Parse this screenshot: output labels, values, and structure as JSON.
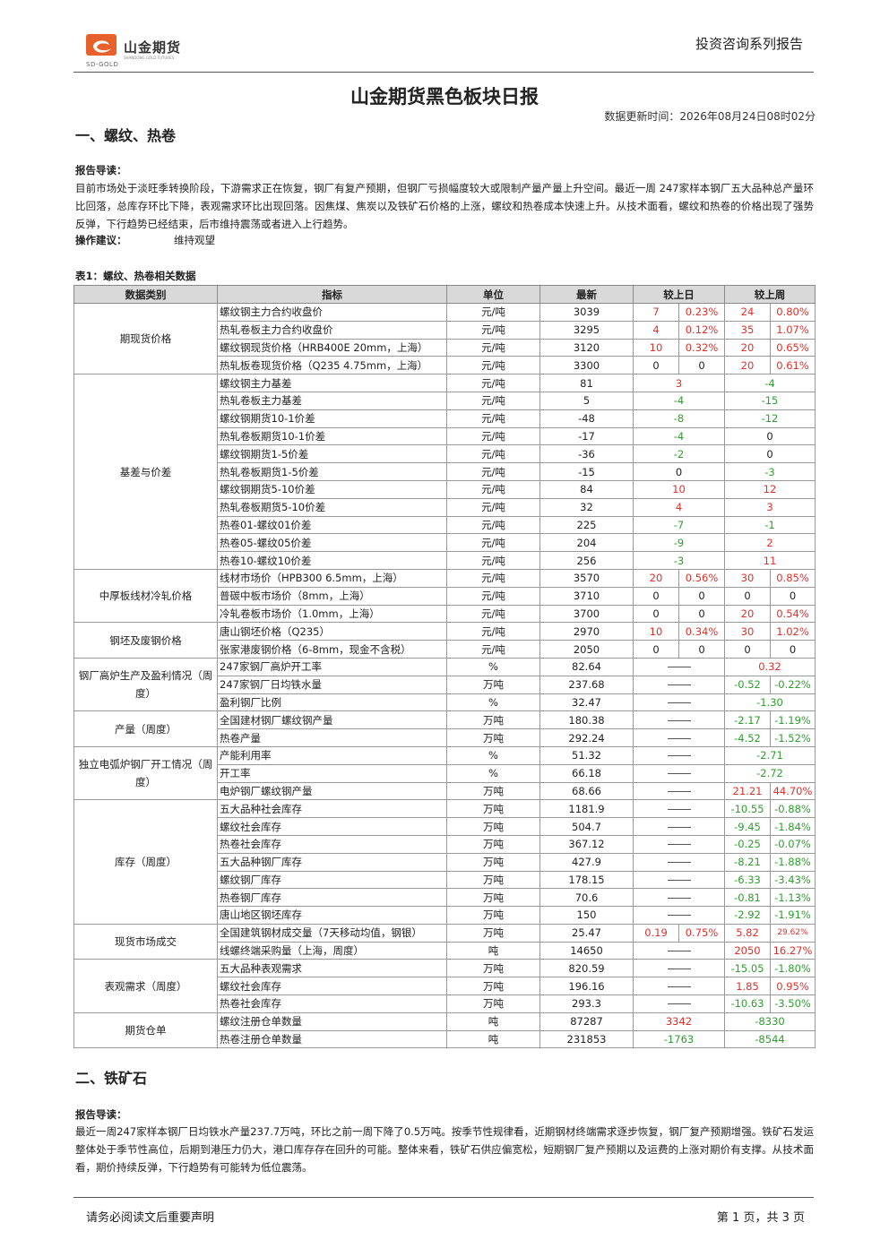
{
  "header": {
    "logo_cn": "山金期货",
    "logo_en": "SD-GOLD",
    "logo_sub": "SHANDONG GOLD FUTURES",
    "series": "投资咨询系列报告"
  },
  "title": "山金期货黑色板块日报",
  "update_time": "数据更新时间：2026年08月24日08时02分",
  "section1": {
    "heading": "一、螺纹、热卷",
    "guide_label": "报告导读：",
    "guide_text": "目前市场处于淡旺季转换阶段，下游需求正在恢复，钢厂有复产预期，但钢厂亏损幅度较大或限制产量产量上升空间。最近一周 247家样本钢厂五大品种总产量环比回落，总库存环比下降，表观需求环比出现回落。因焦煤、焦炭以及铁矿石价格的上涨，螺纹和热卷成本快速上升。从技术面看，螺纹和热卷的价格出现了强势反弹，下行趋势已经结束，后市维持震荡或者进入上行趋势。",
    "advice_label": "操作建议：",
    "advice_value": "维持观望",
    "table_caption": "表1：螺纹、热卷相关数据",
    "columns": [
      "数据类别",
      "指标",
      "单位",
      "最新",
      "较上日",
      "较上周"
    ]
  },
  "table_rows": [
    {
      "cat": "期现货价格",
      "span": 4,
      "ind": "螺纹钢主力合约收盘价",
      "unit": "元/吨",
      "latest": "3039",
      "d": [
        "7",
        "0.23%"
      ],
      "dc": "red",
      "w": [
        "24",
        "0.80%"
      ],
      "wc": "red"
    },
    {
      "ind": "热轧卷板主力合约收盘价",
      "unit": "元/吨",
      "latest": "3295",
      "d": [
        "4",
        "0.12%"
      ],
      "dc": "red",
      "w": [
        "35",
        "1.07%"
      ],
      "wc": "red"
    },
    {
      "ind": "螺纹钢现货价格（HRB400E 20mm，上海）",
      "unit": "元/吨",
      "latest": "3120",
      "d": [
        "10",
        "0.32%"
      ],
      "dc": "red",
      "w": [
        "20",
        "0.65%"
      ],
      "wc": "red"
    },
    {
      "ind": "热轧板卷现货价格（Q235 4.75mm，上海）",
      "unit": "元/吨",
      "latest": "3300",
      "d": [
        "0",
        "0"
      ],
      "dc": "",
      "w": [
        "20",
        "0.61%"
      ],
      "wc": "red"
    },
    {
      "cat": "基差与价差",
      "span": 11,
      "ind": "螺纹钢主力基差",
      "unit": "元/吨",
      "latest": "81",
      "d": [
        "3"
      ],
      "dc": "red",
      "w": [
        "-4"
      ],
      "wc": "grn"
    },
    {
      "ind": "热轧卷板主力基差",
      "unit": "元/吨",
      "latest": "5",
      "d": [
        "-4"
      ],
      "dc": "grn",
      "w": [
        "-15"
      ],
      "wc": "grn"
    },
    {
      "ind": "螺纹钢期货10-1价差",
      "unit": "元/吨",
      "latest": "-48",
      "d": [
        "-8"
      ],
      "dc": "grn",
      "w": [
        "-12"
      ],
      "wc": "grn"
    },
    {
      "ind": "热轧卷板期货10-1价差",
      "unit": "元/吨",
      "latest": "-17",
      "d": [
        "-4"
      ],
      "dc": "grn",
      "w": [
        "0"
      ],
      "wc": ""
    },
    {
      "ind": "螺纹钢期货1-5价差",
      "unit": "元/吨",
      "latest": "-36",
      "d": [
        "-2"
      ],
      "dc": "grn",
      "w": [
        "0"
      ],
      "wc": ""
    },
    {
      "ind": "热轧卷板期货1-5价差",
      "unit": "元/吨",
      "latest": "-15",
      "d": [
        "0"
      ],
      "dc": "",
      "w": [
        "-3"
      ],
      "wc": "grn"
    },
    {
      "ind": "螺纹钢期货5-10价差",
      "unit": "元/吨",
      "latest": "84",
      "d": [
        "10"
      ],
      "dc": "red",
      "w": [
        "12"
      ],
      "wc": "red"
    },
    {
      "ind": "热轧卷板期货5-10价差",
      "unit": "元/吨",
      "latest": "32",
      "d": [
        "4"
      ],
      "dc": "red",
      "w": [
        "3"
      ],
      "wc": "red"
    },
    {
      "ind": "热卷01-螺纹01价差",
      "unit": "元/吨",
      "latest": "225",
      "d": [
        "-7"
      ],
      "dc": "grn",
      "w": [
        "-1"
      ],
      "wc": "grn"
    },
    {
      "ind": "热卷05-螺纹05价差",
      "unit": "元/吨",
      "latest": "204",
      "d": [
        "-9"
      ],
      "dc": "grn",
      "w": [
        "2"
      ],
      "wc": "red"
    },
    {
      "ind": "热卷10-螺纹10价差",
      "unit": "元/吨",
      "latest": "256",
      "d": [
        "-3"
      ],
      "dc": "grn",
      "w": [
        "11"
      ],
      "wc": "red"
    },
    {
      "cat": "中厚板线材冷轧价格",
      "span": 3,
      "ind": "线材市场价（HPB300 6.5mm，上海）",
      "unit": "元/吨",
      "latest": "3570",
      "d": [
        "20",
        "0.56%"
      ],
      "dc": "red",
      "w": [
        "30",
        "0.85%"
      ],
      "wc": "red"
    },
    {
      "ind": "普碳中板市场价（8mm，上海）",
      "unit": "元/吨",
      "latest": "3710",
      "d": [
        "0",
        "0"
      ],
      "dc": "",
      "w": [
        "0",
        "0"
      ],
      "wc": ""
    },
    {
      "ind": "冷轧卷板市场价（1.0mm，上海）",
      "unit": "元/吨",
      "latest": "3700",
      "d": [
        "0",
        "0"
      ],
      "dc": "",
      "w": [
        "20",
        "0.54%"
      ],
      "wc": "red"
    },
    {
      "cat": "钢坯及废钢价格",
      "span": 2,
      "ind": "唐山钢坯价格（Q235）",
      "unit": "元/吨",
      "latest": "2970",
      "d": [
        "10",
        "0.34%"
      ],
      "dc": "red",
      "w": [
        "30",
        "1.02%"
      ],
      "wc": "red"
    },
    {
      "ind": "张家港废钢价格（6-8mm，现金不含税）",
      "unit": "元/吨",
      "latest": "2050",
      "d": [
        "0",
        "0"
      ],
      "dc": "",
      "w": [
        "0",
        "0"
      ],
      "wc": ""
    },
    {
      "cat": "钢厂高炉生产及盈利情况（周度）",
      "span": 3,
      "ind": "247家钢厂高炉开工率",
      "unit": "%",
      "latest": "82.64",
      "d": "dash",
      "w": [
        "0.32"
      ],
      "wc": "red"
    },
    {
      "ind": "247家钢厂日均铁水量",
      "unit": "万吨",
      "latest": "237.68",
      "d": "dash",
      "w": [
        "-0.52",
        "-0.22%"
      ],
      "wc": "grn"
    },
    {
      "ind": "盈利钢厂比例",
      "unit": "%",
      "latest": "32.47",
      "d": "dash",
      "w": [
        "-1.30"
      ],
      "wc": "grn"
    },
    {
      "cat": "产量（周度）",
      "span": 2,
      "ind": "全国建材钢厂螺纹钢产量",
      "unit": "万吨",
      "latest": "180.38",
      "d": "dash",
      "w": [
        "-2.17",
        "-1.19%"
      ],
      "wc": "grn"
    },
    {
      "ind": "热卷产量",
      "unit": "万吨",
      "latest": "292.24",
      "d": "dash",
      "w": [
        "-4.52",
        "-1.52%"
      ],
      "wc": "grn"
    },
    {
      "cat": "独立电弧炉钢厂开工情况（周度）",
      "span": 3,
      "ind": "产能利用率",
      "unit": "%",
      "latest": "51.32",
      "d": "dash",
      "w": [
        "-2.71"
      ],
      "wc": "grn"
    },
    {
      "ind": "开工率",
      "unit": "%",
      "latest": "66.18",
      "d": "dash",
      "w": [
        "-2.72"
      ],
      "wc": "grn"
    },
    {
      "ind": "电炉钢厂螺纹钢产量",
      "unit": "万吨",
      "latest": "68.66",
      "d": "dash",
      "w": [
        "21.21",
        "44.70%"
      ],
      "wc": "red"
    },
    {
      "cat": "库存（周度）",
      "span": 7,
      "ind": "五大品种社会库存",
      "unit": "万吨",
      "latest": "1181.9",
      "d": "dash",
      "w": [
        "-10.55",
        "-0.88%"
      ],
      "wc": "grn"
    },
    {
      "ind": "螺纹社会库存",
      "unit": "万吨",
      "latest": "504.7",
      "d": "dash",
      "w": [
        "-9.45",
        "-1.84%"
      ],
      "wc": "grn"
    },
    {
      "ind": "热卷社会库存",
      "unit": "万吨",
      "latest": "367.12",
      "d": "dash",
      "w": [
        "-0.25",
        "-0.07%"
      ],
      "wc": "grn"
    },
    {
      "ind": "五大品种钢厂库存",
      "unit": "万吨",
      "latest": "427.9",
      "d": "dash",
      "w": [
        "-8.21",
        "-1.88%"
      ],
      "wc": "grn"
    },
    {
      "ind": "螺纹钢厂库存",
      "unit": "万吨",
      "latest": "178.15",
      "d": "dash",
      "w": [
        "-6.33",
        "-3.43%"
      ],
      "wc": "grn"
    },
    {
      "ind": "热卷钢厂库存",
      "unit": "万吨",
      "latest": "70.6",
      "d": "dash",
      "w": [
        "-0.81",
        "-1.13%"
      ],
      "wc": "grn"
    },
    {
      "ind": "唐山地区钢坯库存",
      "unit": "万吨",
      "latest": "150",
      "d": "dash",
      "w": [
        "-2.92",
        "-1.91%"
      ],
      "wc": "grn"
    },
    {
      "cat": "现货市场成交",
      "span": 2,
      "ind": "全国建筑钢材成交量（7天移动均值，钢银）",
      "unit": "万吨",
      "latest": "25.47",
      "d": [
        "0.19",
        "0.75%"
      ],
      "dc": "red",
      "w": [
        "5.82",
        "29.62%"
      ],
      "wc": "red",
      "wsmall": true
    },
    {
      "ind": "线螺终端采购量（上海，周度）",
      "unit": "吨",
      "latest": "14650",
      "d": "dash",
      "w": [
        "2050",
        "16.27%"
      ],
      "wc": "red"
    },
    {
      "cat": "表观需求（周度）",
      "span": 3,
      "ind": "五大品种表观需求",
      "unit": "万吨",
      "latest": "820.59",
      "d": "dash",
      "w": [
        "-15.05",
        "-1.80%"
      ],
      "wc": "grn"
    },
    {
      "ind": "螺纹社会库存",
      "unit": "万吨",
      "latest": "196.16",
      "d": "dash",
      "w": [
        "1.85",
        "0.95%"
      ],
      "wc": "red"
    },
    {
      "ind": "热卷社会库存",
      "unit": "万吨",
      "latest": "293.3",
      "d": "dash",
      "w": [
        "-10.63",
        "-3.50%"
      ],
      "wc": "grn"
    },
    {
      "cat": "期货仓单",
      "span": 2,
      "ind": "螺纹注册仓单数量",
      "unit": "吨",
      "latest": "87287",
      "d": [
        "3342"
      ],
      "dc": "red",
      "w": [
        "-8330"
      ],
      "wc": "grn"
    },
    {
      "ind": "热卷注册仓单数量",
      "unit": "吨",
      "latest": "231853",
      "d": [
        "-1763"
      ],
      "dc": "grn",
      "w": [
        "-8544"
      ],
      "wc": "grn"
    }
  ],
  "section2": {
    "heading": "二、铁矿石",
    "guide_label": "报告导读：",
    "guide_text": "最近一周247家样本钢厂日均铁水产量237.7万吨，环比之前一周下降了0.5万吨。按季节性规律看，近期钢材终端需求逐步恢复，钢厂复产预期增强。铁矿石发运整体处于季节性高位，后期到港压力仍大，港口库存存在回升的可能。整体来看，铁矿石供应偏宽松，短期钢厂复产预期以及运费的上涨对期价有支撑。从技术面看，期价持续反弹，下行趋势有可能转为低位震荡。"
  },
  "footer": {
    "disclaimer": "请务必阅读文后重要声明",
    "page": "第 1 页，共 3 页"
  },
  "colors": {
    "up": "#e0302a",
    "down": "#2e9e2e",
    "header_bg": "#d9d9d9",
    "logo": "#e8612c"
  }
}
